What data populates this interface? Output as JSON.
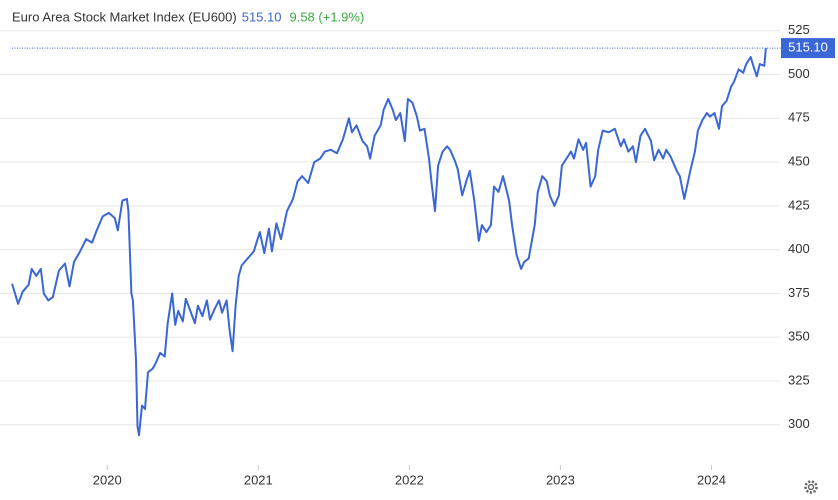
{
  "chart_data": {
    "type": "line",
    "title": "Euro Area Stock Market Index (EU600)",
    "last_label": "515.10",
    "change_label": "9.58 (+1.9%)",
    "x": [
      2019.37,
      2019.41,
      2019.44,
      2019.48,
      2019.5,
      2019.53,
      2019.56,
      2019.58,
      2019.61,
      2019.64,
      2019.68,
      2019.72,
      2019.75,
      2019.78,
      2019.82,
      2019.86,
      2019.9,
      2019.93,
      2019.97,
      2020.01,
      2020.05,
      2020.07,
      2020.1,
      2020.13,
      2020.14,
      2020.16,
      2020.17,
      2020.19,
      2020.2,
      2020.21,
      2020.23,
      2020.25,
      2020.27,
      2020.3,
      2020.32,
      2020.35,
      2020.38,
      2020.4,
      2020.43,
      2020.45,
      2020.47,
      2020.5,
      2020.52,
      2020.55,
      2020.58,
      2020.6,
      2020.63,
      2020.66,
      2020.68,
      2020.71,
      2020.74,
      2020.76,
      2020.79,
      2020.81,
      2020.83,
      2020.85,
      2020.87,
      2020.89,
      2020.93,
      2020.97,
      2021.01,
      2021.04,
      2021.07,
      2021.09,
      2021.12,
      2021.15,
      2021.19,
      2021.23,
      2021.26,
      2021.29,
      2021.33,
      2021.37,
      2021.41,
      2021.44,
      2021.48,
      2021.52,
      2021.56,
      2021.6,
      2021.62,
      2021.65,
      2021.69,
      2021.72,
      2021.74,
      2021.77,
      2021.81,
      2021.83,
      2021.86,
      2021.89,
      2021.91,
      2021.94,
      2021.97,
      2021.99,
      2022.02,
      2022.05,
      2022.07,
      2022.1,
      2022.13,
      2022.15,
      2022.17,
      2022.19,
      2022.22,
      2022.25,
      2022.27,
      2022.3,
      2022.32,
      2022.35,
      2022.38,
      2022.4,
      2022.43,
      2022.46,
      2022.48,
      2022.51,
      2022.54,
      2022.56,
      2022.59,
      2022.62,
      2022.66,
      2022.68,
      2022.71,
      2022.74,
      2022.76,
      2022.79,
      2022.83,
      2022.85,
      2022.88,
      2022.91,
      2022.93,
      2022.96,
      2022.99,
      2023.01,
      2023.04,
      2023.07,
      2023.09,
      2023.12,
      2023.15,
      2023.17,
      2023.2,
      2023.23,
      2023.25,
      2023.28,
      2023.32,
      2023.36,
      2023.4,
      2023.42,
      2023.45,
      2023.48,
      2023.5,
      2023.53,
      2023.56,
      2023.6,
      2023.62,
      2023.65,
      2023.68,
      2023.7,
      2023.73,
      2023.77,
      2023.79,
      2023.82,
      2023.83,
      2023.86,
      2023.89,
      2023.91,
      2023.94,
      2023.97,
      2023.99,
      2024.02,
      2024.05,
      2024.07,
      2024.1,
      2024.13,
      2024.15,
      2024.18,
      2024.21,
      2024.23,
      2024.26,
      2024.28,
      2024.3,
      2024.32,
      2024.35,
      2024.36
    ],
    "series": [
      {
        "name": "EU600",
        "color": "#3a66d6",
        "values": [
          380.5,
          369,
          376,
          380,
          389,
          385,
          389,
          375,
          371,
          373,
          388,
          392,
          379,
          393,
          399,
          406,
          404,
          411,
          419,
          421,
          418,
          411,
          428,
          429,
          422,
          375,
          371,
          337,
          299,
          294,
          311,
          309,
          330,
          332,
          335,
          341,
          339,
          358,
          375,
          357,
          365,
          359,
          372,
          365,
          358,
          368,
          362,
          371,
          360,
          366,
          371,
          364,
          371,
          354,
          342,
          368,
          385,
          391,
          395,
          399,
          410,
          398,
          412,
          399,
          415,
          406,
          422,
          429,
          439,
          442,
          438,
          450,
          452,
          456,
          457,
          455,
          463,
          475,
          467,
          471,
          462,
          459,
          452,
          465,
          471,
          480,
          486,
          480,
          474,
          478,
          462,
          486,
          484,
          476,
          468,
          469,
          452,
          436,
          422,
          448,
          456,
          459,
          457,
          451,
          446,
          431,
          440,
          445,
          428,
          405,
          414,
          410,
          414,
          436,
          433,
          442,
          428,
          414,
          397,
          389,
          393,
          395,
          414,
          433,
          442,
          439,
          431,
          425,
          431,
          448,
          452,
          456,
          452,
          463,
          457,
          461,
          436,
          442,
          457,
          468,
          467,
          469,
          459,
          463,
          456,
          459,
          450,
          465,
          469,
          462,
          451,
          457,
          452,
          457,
          453,
          445,
          442,
          429,
          433,
          445,
          456,
          468,
          474,
          478,
          476,
          478,
          469,
          482,
          485,
          493,
          496,
          503,
          501,
          506,
          510,
          504,
          499,
          506,
          505,
          515.1
        ]
      }
    ],
    "xlim": [
      2019.29,
      2024.5
    ],
    "xticks": [
      2020,
      2021,
      2022,
      2023,
      2024
    ],
    "ylim": [
      277,
      538
    ],
    "yticks": [
      300,
      325,
      350,
      375,
      400,
      425,
      450,
      475,
      500,
      525
    ],
    "grid": true
  }
}
